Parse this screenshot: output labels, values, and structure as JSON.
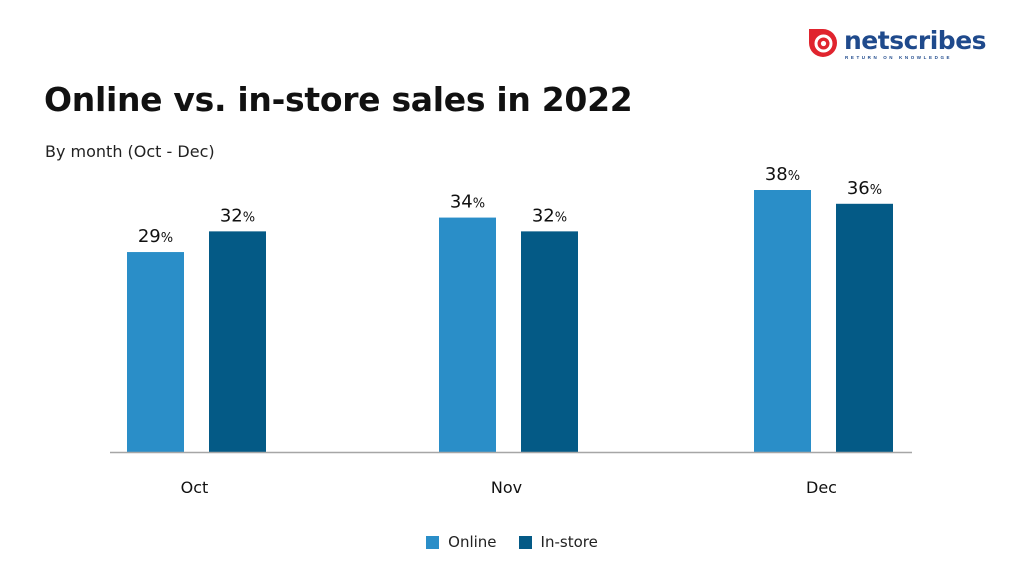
{
  "logo": {
    "wordmark": "netscribes",
    "tagline": "RETURN ON KNOWLEDGE",
    "icon": "netscribes-logo-icon",
    "color_red": "#e0242e",
    "color_blue": "#1f4a8c"
  },
  "chart_data": {
    "type": "bar",
    "title": "Online vs. in-store sales in 2022",
    "subtitle": "By month (Oct - Dec)",
    "categories": [
      "Oct",
      "Nov",
      "Dec"
    ],
    "series": [
      {
        "name": "Online",
        "values": [
          29,
          34,
          38
        ],
        "color": "#2a8ec8"
      },
      {
        "name": "In-store",
        "values": [
          32,
          32,
          36
        ],
        "color": "#045a86"
      }
    ],
    "value_suffix": "%",
    "ylim": [
      0,
      38
    ],
    "grid": false,
    "legend_position": "bottom-center",
    "xlabel": "",
    "ylabel": ""
  }
}
